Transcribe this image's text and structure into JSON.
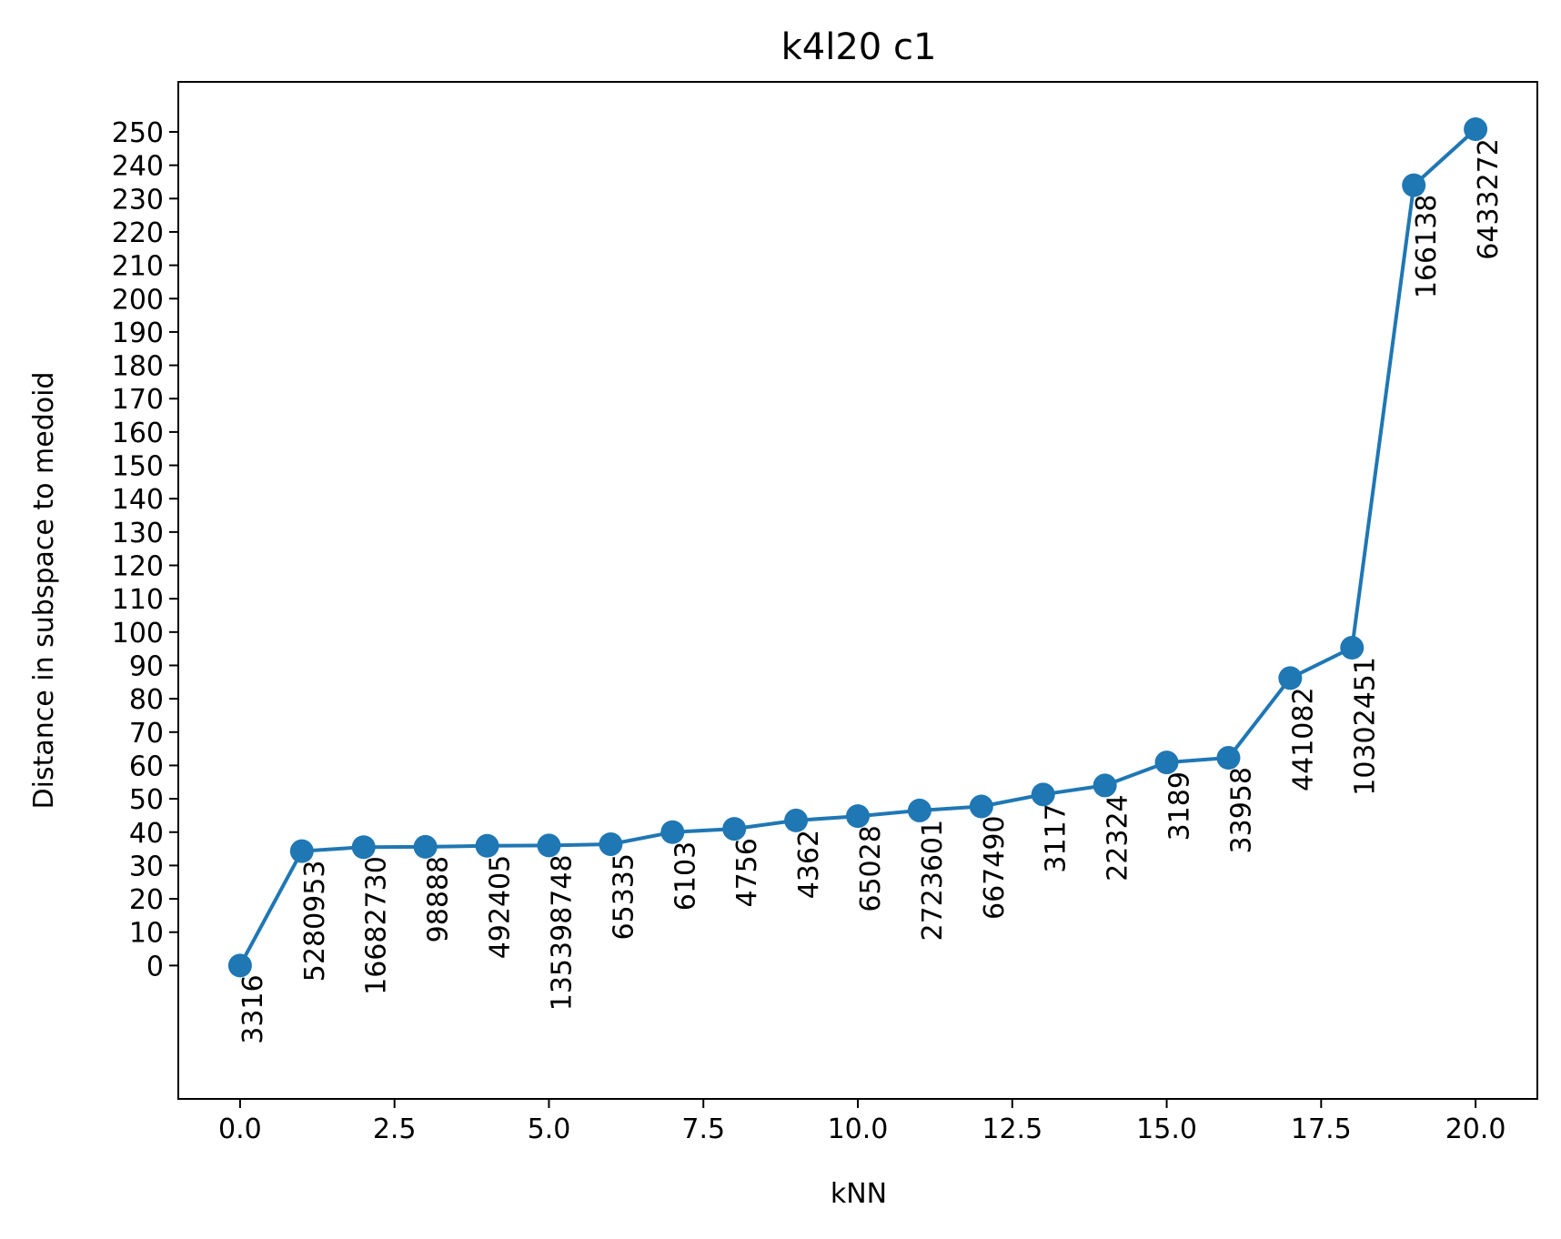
{
  "chart_data": {
    "type": "line",
    "title": "k4l20 c1",
    "xlabel": "kNN",
    "ylabel": "Distance in subspace to medoid",
    "xlim": [
      -1,
      21
    ],
    "ylim": [
      -40,
      265
    ],
    "x_ticks": [
      0.0,
      2.5,
      5.0,
      7.5,
      10.0,
      12.5,
      15.0,
      17.5,
      20.0
    ],
    "x_tick_labels": [
      "0.0",
      "2.5",
      "5.0",
      "7.5",
      "10.0",
      "12.5",
      "15.0",
      "17.5",
      "20.0"
    ],
    "y_ticks": [
      0,
      10,
      20,
      30,
      40,
      50,
      60,
      70,
      80,
      90,
      100,
      110,
      120,
      130,
      140,
      150,
      160,
      170,
      180,
      190,
      200,
      210,
      220,
      230,
      240,
      250
    ],
    "y_tick_labels": [
      "0",
      "10",
      "20",
      "30",
      "40",
      "50",
      "60",
      "70",
      "80",
      "90",
      "100",
      "110",
      "120",
      "130",
      "140",
      "150",
      "160",
      "170",
      "180",
      "190",
      "200",
      "210",
      "220",
      "230",
      "240",
      "250"
    ],
    "grid": false,
    "legend": "none",
    "color": "#1f77b4",
    "x": [
      0,
      1,
      2,
      3,
      4,
      5,
      6,
      7,
      8,
      9,
      10,
      11,
      12,
      13,
      14,
      15,
      16,
      17,
      18,
      19,
      20
    ],
    "y": [
      0,
      34.3,
      35.5,
      35.6,
      35.9,
      36.0,
      36.4,
      40.0,
      41.0,
      43.5,
      44.8,
      46.5,
      47.7,
      51.3,
      54.0,
      60.9,
      62.3,
      86.2,
      95.3,
      234.0,
      250.8
    ],
    "point_labels": [
      "3316",
      "5280953",
      "16682730",
      "98888",
      "492405",
      "135398748",
      "65335",
      "6103",
      "4756",
      "4362",
      "65028",
      "2723601",
      "667490",
      "3117",
      "22324",
      "3189",
      "33958",
      "441082",
      "10302451",
      "166138",
      "6433272"
    ]
  }
}
